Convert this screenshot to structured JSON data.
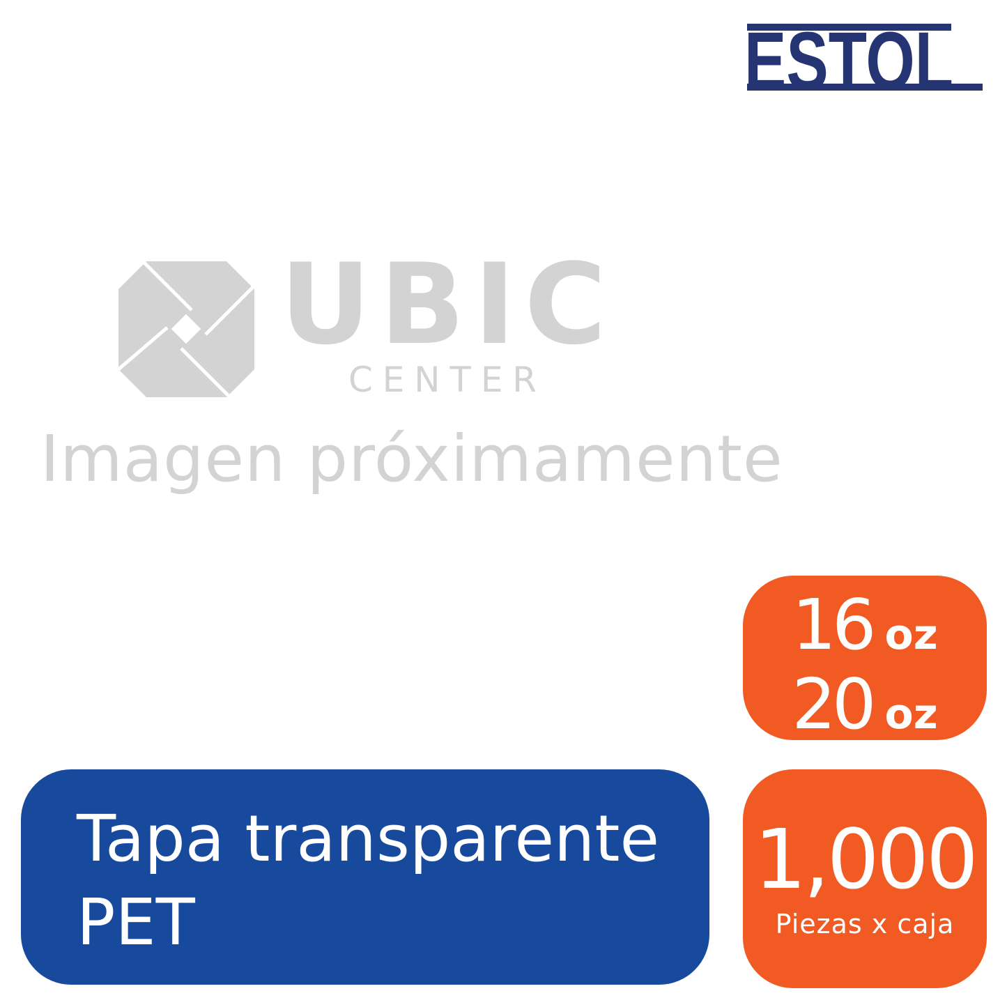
{
  "brand": {
    "logo_text": "ESTOL",
    "color": "#253574"
  },
  "placeholder_logo": {
    "title": "UBIC",
    "subtitle": "CENTER",
    "color": "#d3d3d3"
  },
  "placeholder_text": "Imagen próximamente",
  "sizes": {
    "items": [
      {
        "value": "16",
        "unit": "oz"
      },
      {
        "value": "20",
        "unit": "oz"
      }
    ],
    "color": "#f15a22"
  },
  "quantity": {
    "value": "1,000",
    "label": "Piezas x caja",
    "color": "#f15a22"
  },
  "product": {
    "line1": "Tapa transparente",
    "line2": "PET",
    "color": "#17499d"
  }
}
